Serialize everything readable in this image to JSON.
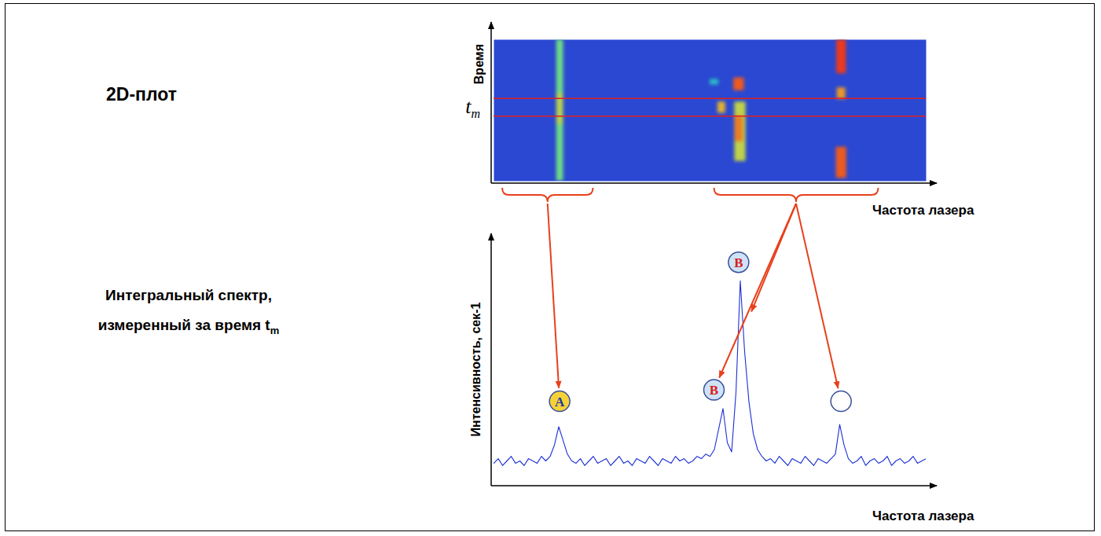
{
  "chart_data": [
    {
      "type": "heatmap",
      "title": "2D-плот",
      "x_label": "Частота лазера",
      "y_label": "Время",
      "xlim": [
        0,
        100
      ],
      "ylim": [
        0,
        100
      ],
      "xticks": [],
      "yticks": [],
      "tick_labels": false,
      "color": "#2a48d2",
      "intensity_lim": [
        0,
        1
      ],
      "spots": [
        {
          "f": 15.3,
          "t": [
            0,
            100
          ],
          "width": 1.6,
          "intensity": 0.55
        },
        {
          "f": 15.3,
          "t": [
            40,
            62
          ],
          "width": 1.4,
          "intensity": 0.7
        },
        {
          "f": 51,
          "t": [
            68,
            72
          ],
          "width": 2,
          "intensity": 0.35
        },
        {
          "f": 57,
          "t": [
            14,
            56
          ],
          "width": 2.6,
          "intensity": 0.7
        },
        {
          "f": 56.7,
          "t": [
            28,
            46
          ],
          "width": 1.8,
          "intensity": 0.9
        },
        {
          "f": 52.7,
          "t": [
            48,
            56
          ],
          "width": 1.8,
          "intensity": 0.8
        },
        {
          "f": 56.7,
          "t": [
            64,
            73
          ],
          "width": 2.4,
          "intensity": 0.95
        },
        {
          "f": 80.4,
          "t": [
            58,
            66
          ],
          "width": 2,
          "intensity": 0.85
        },
        {
          "f": 80.4,
          "t": [
            2,
            24
          ],
          "width": 2.4,
          "intensity": 0.95
        },
        {
          "f": 80.4,
          "t": [
            76,
            100
          ],
          "width": 2.2,
          "intensity": 1
        }
      ],
      "time_window": {
        "values": [
          46,
          58.5
        ],
        "label": "t",
        "label_sub": "m",
        "color": "#e02020"
      }
    },
    {
      "type": "line",
      "title": "Интегральный спектр, измеренный за время t",
      "title_sub": "m",
      "x_label": "Частота лазера",
      "y_label": "Интенсивность, сек-1",
      "xlim": [
        0,
        100
      ],
      "ylim": [
        0,
        100
      ],
      "xticks": [],
      "yticks": [],
      "tick_labels": false,
      "color": "#1c2fd6",
      "x": [
        0,
        1,
        2,
        3,
        4,
        5,
        6,
        7,
        8,
        9,
        10,
        11,
        12,
        13,
        14,
        15,
        16,
        17,
        18,
        19,
        20,
        21,
        22,
        23,
        24,
        25,
        26,
        27,
        28,
        29,
        30,
        31,
        32,
        33,
        34,
        35,
        36,
        37,
        38,
        39,
        40,
        41,
        42,
        43,
        44,
        45,
        46,
        47,
        48,
        49,
        50,
        51,
        52,
        53,
        54,
        55,
        56,
        57,
        58,
        59,
        60,
        61,
        62,
        63,
        64,
        65,
        66,
        67,
        68,
        69,
        70,
        71,
        72,
        73,
        74,
        75,
        76,
        77,
        78,
        79,
        80,
        81,
        82,
        83,
        84,
        85,
        86,
        87,
        88,
        89,
        90,
        91,
        92,
        93,
        94,
        95,
        96,
        97,
        98,
        99,
        100
      ],
      "values": [
        9,
        11,
        8,
        10,
        12,
        9,
        10,
        8,
        11,
        10,
        9,
        12,
        10,
        12,
        17,
        25,
        19,
        13,
        10,
        9,
        11,
        8,
        10,
        12,
        9,
        10,
        11,
        8,
        10,
        12,
        9,
        10,
        8,
        11,
        10,
        9,
        12,
        10,
        8,
        11,
        10,
        9,
        12,
        10,
        11,
        9,
        10,
        12,
        11,
        13,
        12,
        15,
        24,
        33,
        18,
        14,
        40,
        89,
        58,
        36,
        22,
        15,
        12,
        10,
        11,
        9,
        12,
        10,
        8,
        11,
        10,
        9,
        12,
        10,
        8,
        11,
        10,
        9,
        11,
        13,
        26,
        17,
        11,
        9,
        10,
        12,
        8,
        10,
        11,
        9,
        10,
        12,
        8,
        10,
        11,
        9,
        10,
        12,
        9,
        10,
        11
      ],
      "annotations": [
        {
          "text": "A",
          "x": 15.3,
          "y": 36,
          "colors": [
            "#f5d23a",
            "#1f3a9e"
          ]
        },
        {
          "text": "B",
          "x": 51,
          "y": 41,
          "colors": [
            "#cfe3f7",
            "#d8201a"
          ]
        },
        {
          "text": "B",
          "x": 56.7,
          "y": 97,
          "colors": [
            "#cfe3f7",
            "#d8201a"
          ]
        },
        {
          "x": 80.4,
          "y": 36,
          "colors": [
            "#ffffff",
            "#2040c0"
          ]
        }
      ]
    }
  ],
  "links": [
    {
      "from": [
        2,
        23
      ],
      "to": [
        [
          15.3,
          36
        ]
      ]
    },
    {
      "from": [
        51,
        89
      ],
      "to": [
        [
          51,
          41
        ],
        [
          58.5,
          70
        ],
        [
          80.4,
          36
        ]
      ]
    }
  ]
}
